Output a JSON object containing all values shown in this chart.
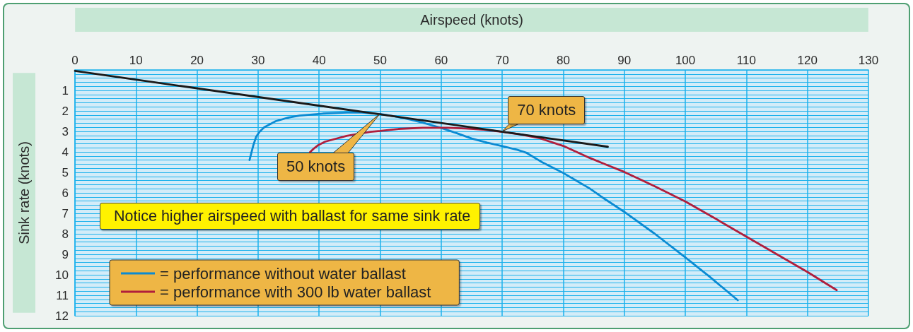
{
  "chart_data": {
    "type": "line",
    "xlabel": "Airspeed (knots)",
    "ylabel": "Sink rate (knots)",
    "xlim": [
      0,
      130
    ],
    "xticks": [
      0,
      10,
      20,
      30,
      40,
      50,
      60,
      70,
      80,
      90,
      100,
      110,
      120,
      130
    ],
    "ylim": [
      12,
      0
    ],
    "yticks": [
      {
        "value": 0.2,
        "label": null
      },
      {
        "value": 0.4,
        "label": null
      },
      {
        "value": 0.6,
        "label": null
      },
      {
        "value": 0.8,
        "label": null
      },
      1,
      {
        "value": 1.2,
        "label": null
      },
      {
        "value": 1.4,
        "label": null
      },
      {
        "value": 1.6,
        "label": null
      },
      {
        "value": 1.8,
        "label": null
      },
      2,
      {
        "value": 2.2,
        "label": null
      },
      {
        "value": 2.4,
        "label": null
      },
      {
        "value": 2.6,
        "label": null
      },
      {
        "value": 2.8,
        "label": null
      },
      3,
      {
        "value": 3.2,
        "label": null
      },
      {
        "value": 3.4,
        "label": null
      },
      {
        "value": 3.6,
        "label": null
      },
      {
        "value": 3.8,
        "label": null
      },
      4,
      {
        "value": 4.2,
        "label": null
      },
      {
        "value": 4.4,
        "label": null
      },
      {
        "value": 4.6,
        "label": null
      },
      {
        "value": 4.8,
        "label": null
      },
      5,
      {
        "value": 5.2,
        "label": null
      },
      {
        "value": 5.4,
        "label": null
      },
      {
        "value": 5.6,
        "label": null
      },
      {
        "value": 5.8,
        "label": null
      },
      6,
      {
        "value": 6.2,
        "label": null
      },
      {
        "value": 6.4,
        "label": null
      },
      {
        "value": 6.6,
        "label": null
      },
      {
        "value": 6.8,
        "label": null
      },
      7,
      {
        "value": 7.2,
        "label": null
      },
      {
        "value": 7.4,
        "label": null
      },
      {
        "value": 7.6,
        "label": null
      },
      {
        "value": 7.8,
        "label": null
      },
      8,
      {
        "value": 8.2,
        "label": null
      },
      {
        "value": 8.4,
        "label": null
      },
      {
        "value": 8.6,
        "label": null
      },
      {
        "value": 8.8,
        "label": null
      },
      9,
      {
        "value": 9.2,
        "label": null
      },
      {
        "value": 9.4,
        "label": null
      },
      {
        "value": 9.6,
        "label": null
      },
      {
        "value": 9.8,
        "label": null
      },
      10,
      {
        "value": 10.2,
        "label": null
      },
      {
        "value": 10.4,
        "label": null
      },
      {
        "value": 10.6,
        "label": null
      },
      {
        "value": 10.8,
        "label": null
      },
      11,
      {
        "value": 11.2,
        "label": null
      },
      {
        "value": 11.4,
        "label": null
      },
      {
        "value": 11.6,
        "label": null
      },
      {
        "value": 11.8,
        "label": null
      },
      12
    ],
    "grid": true,
    "legend": "bottom left",
    "marker": "none",
    "series": [
      {
        "name": "= performance without water ballast",
        "color": "#0b8ad2",
        "x": [
          28.6,
          29.2,
          29.7,
          30.3,
          31.0,
          32.9,
          35.0,
          36.8,
          40.6,
          44.5,
          47.0,
          50.0,
          52.5,
          55.0,
          57.5,
          60.0,
          62.5,
          65.0,
          67.5,
          70.0,
          72.5,
          74.0,
          76.5,
          78.5,
          80.0,
          82.0,
          84.3,
          86.2,
          90.0,
          95.0,
          100.0,
          104.0,
          108.6
        ],
        "values": [
          4.4,
          3.7,
          3.25,
          3.0,
          2.8,
          2.5,
          2.32,
          2.23,
          2.13,
          2.08,
          2.08,
          2.15,
          2.27,
          2.43,
          2.62,
          2.83,
          3.08,
          3.35,
          3.55,
          3.72,
          3.9,
          4.05,
          4.5,
          4.8,
          5.03,
          5.38,
          5.78,
          6.18,
          6.93,
          8.0,
          9.15,
          10.1,
          11.24
        ]
      },
      {
        "name": "= performance with 300 lb water ballast",
        "color": "#b01e3c",
        "x": [
          38.5,
          39.2,
          39.9,
          41.0,
          42.6,
          44.5,
          48.4,
          50.0,
          53.0,
          57.0,
          61.0,
          64.0,
          67.0,
          70.0,
          73.0,
          76.0,
          80.0,
          84.3,
          87.0,
          90.0,
          95.0,
          100.0,
          105.0,
          110.0,
          115.0,
          120.0,
          124.8
        ],
        "values": [
          4.02,
          3.82,
          3.66,
          3.5,
          3.37,
          3.22,
          3.02,
          2.98,
          2.88,
          2.82,
          2.82,
          2.86,
          2.92,
          3.02,
          3.15,
          3.32,
          3.71,
          4.29,
          4.62,
          4.98,
          5.68,
          6.42,
          7.27,
          8.14,
          9.0,
          9.86,
          10.75
        ]
      },
      {
        "color": "#1a1a1a",
        "x": [
          0,
          87.3
        ],
        "values": [
          0.05,
          3.75
        ]
      }
    ],
    "annotations": [
      "50 knots",
      {
        "text": "70 knots",
        "x": 70,
        "y": 3.0
      },
      "Notice higher airspeed with ballast for same sink rate"
    ]
  }
}
